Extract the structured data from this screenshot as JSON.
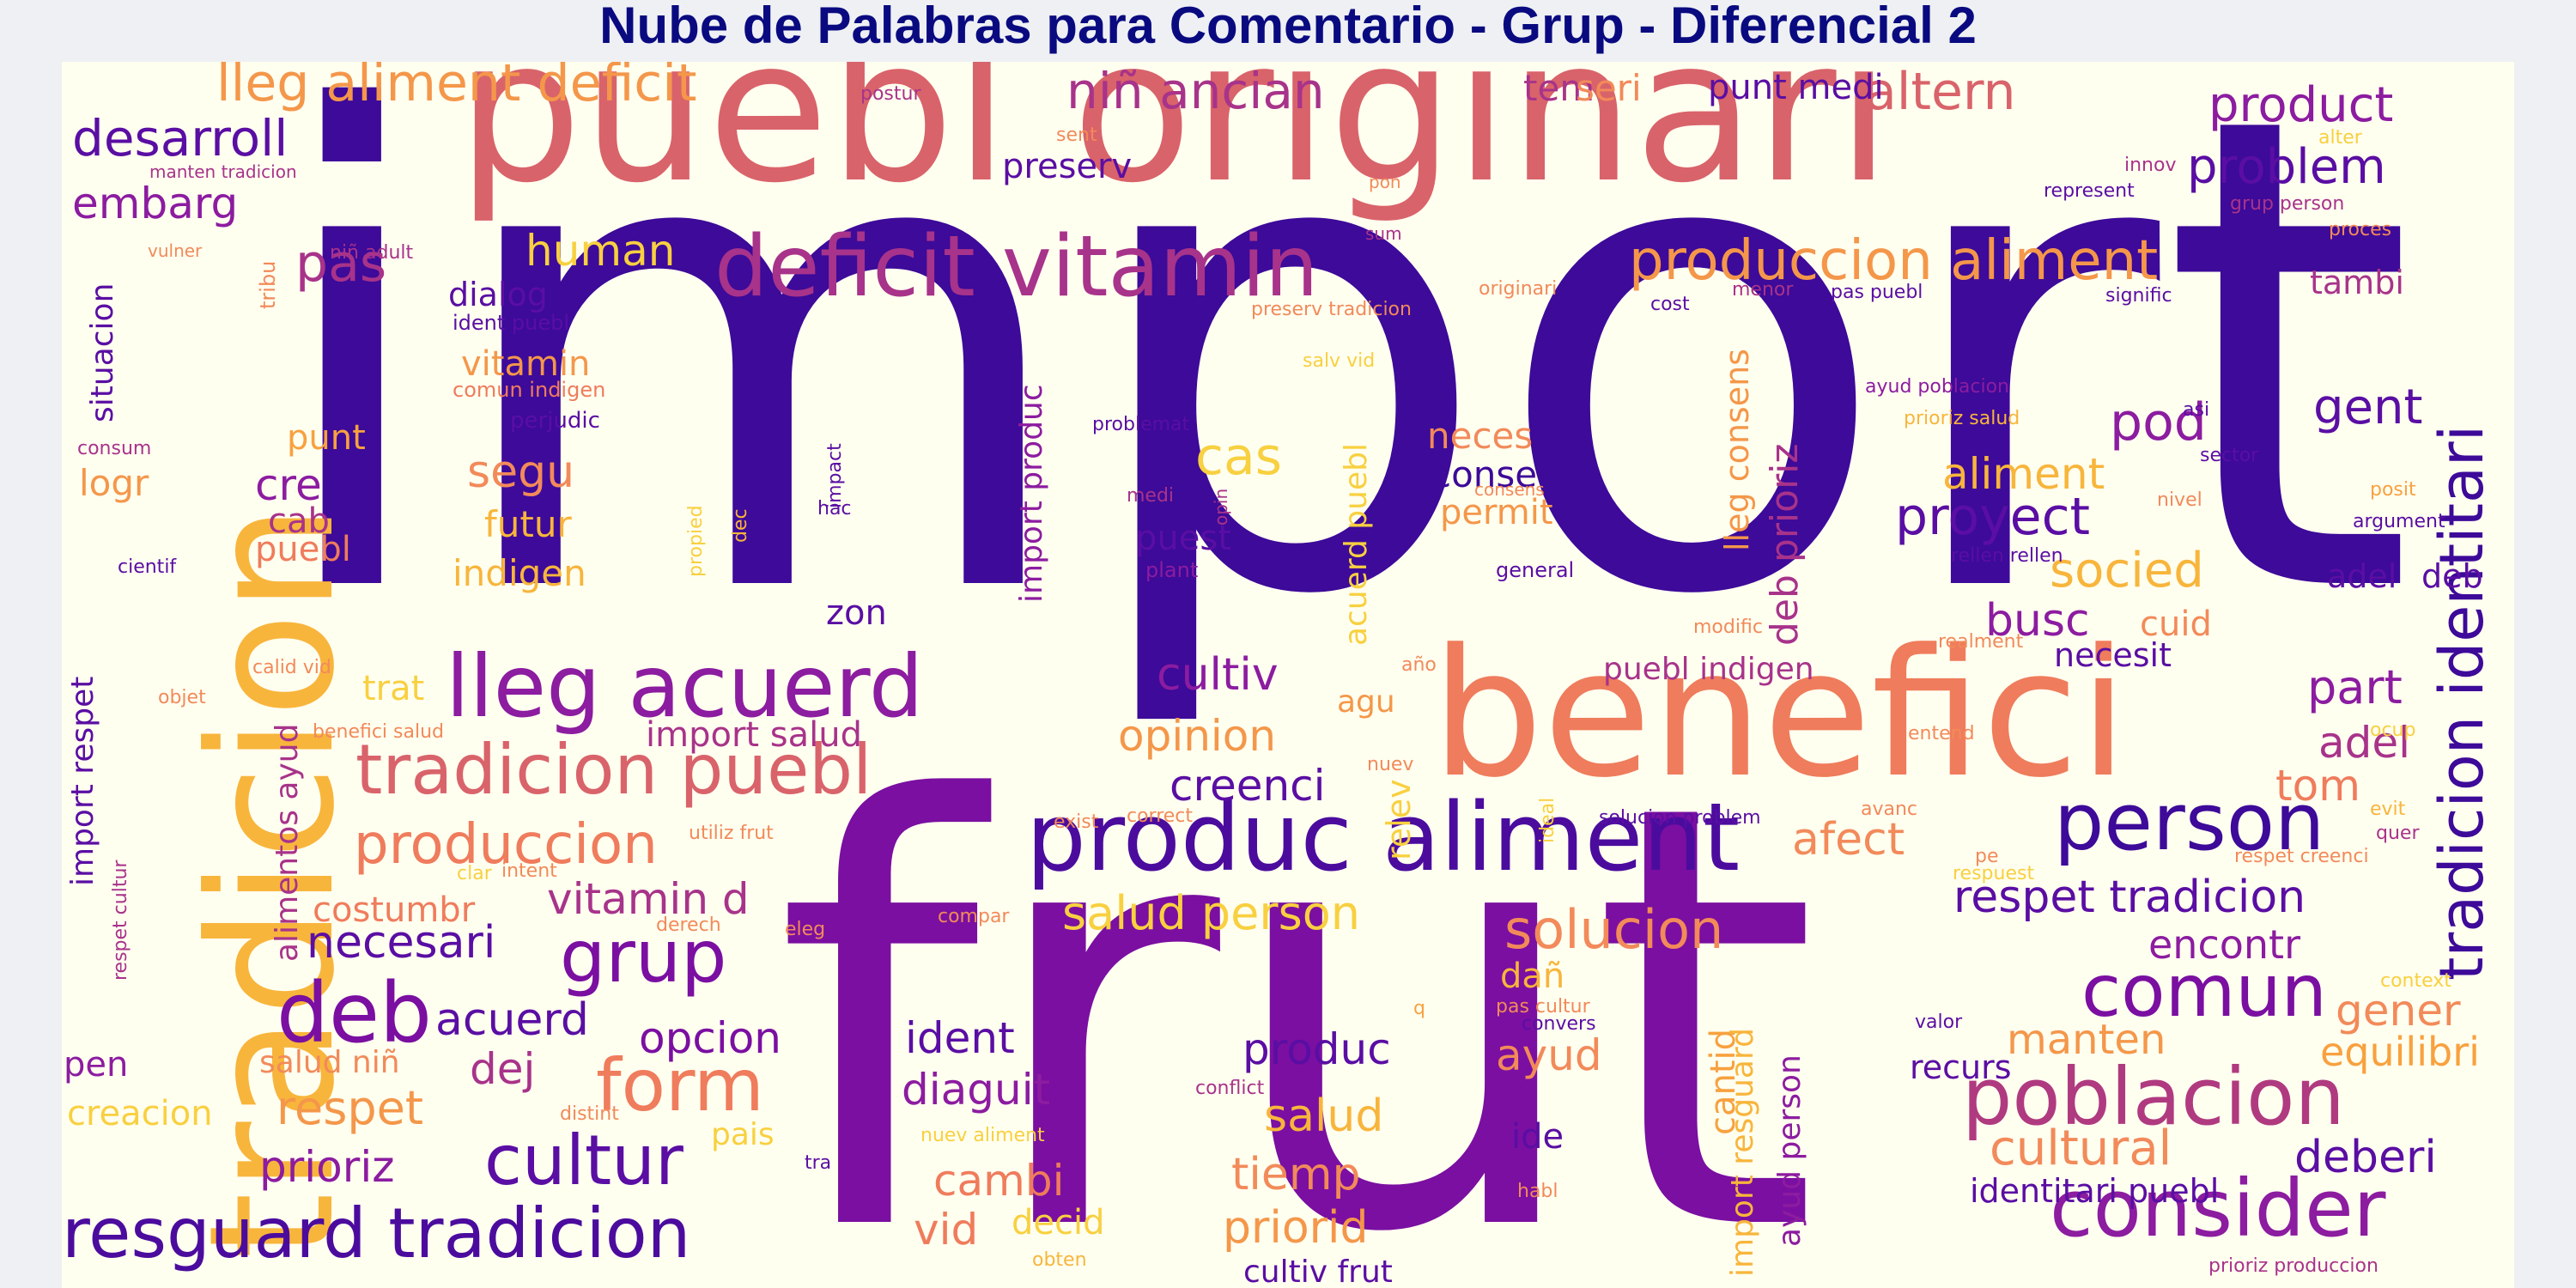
{
  "title": "Nube de Palabras para Comentario - Grup - Diferencial 2",
  "palette": {
    "dark_purple": "#3d0a99",
    "purple": "#7a0fa1",
    "magenta": "#a12a8f",
    "rose": "#d25e6b",
    "salmon": "#f28a5a",
    "orange": "#f8a13f",
    "yellow": "#f8d040"
  },
  "words": [
    {
      "text": "import",
      "color": "#3d0a99"
    },
    {
      "text": "frut",
      "color": "#7a0fa1"
    },
    {
      "text": "puebl originari",
      "color": "#d9636a"
    },
    {
      "text": "tradicion",
      "color": "#f8b53c"
    },
    {
      "text": "benefici",
      "color": "#ef7c5c"
    },
    {
      "text": "deficit vitamin",
      "color": "#a8338a"
    },
    {
      "text": "produc aliment",
      "color": "#4b0c9e"
    },
    {
      "text": "lleg acuerd",
      "color": "#8c1ca0"
    },
    {
      "text": "tradicion puebl",
      "color": "#d9636a"
    },
    {
      "text": "resguard tradicion",
      "color": "#4b0c9e"
    },
    {
      "text": "consider",
      "color": "#8c1ca0"
    },
    {
      "text": "poblacion",
      "color": "#b03a80"
    },
    {
      "text": "person",
      "color": "#3d0a99"
    },
    {
      "text": "tradicion identitari",
      "color": "#3d0a99"
    },
    {
      "text": "cultur",
      "color": "#5a0ea3"
    },
    {
      "text": "deb",
      "color": "#7a0fa1"
    },
    {
      "text": "grup",
      "color": "#7a0fa1"
    },
    {
      "text": "form",
      "color": "#ef7c5c"
    },
    {
      "text": "comun",
      "color": "#7a0fa1"
    },
    {
      "text": "lleg aliment deficit",
      "color": "#f4974a"
    },
    {
      "text": "niñ ancian",
      "color": "#a8338a"
    },
    {
      "text": "altern",
      "color": "#d9636a"
    },
    {
      "text": "product",
      "color": "#8c1ca0"
    },
    {
      "text": "problem",
      "color": "#5a0ea3"
    },
    {
      "text": "desarroll",
      "color": "#5a0ea3"
    },
    {
      "text": "embarg",
      "color": "#8c1ca0"
    },
    {
      "text": "pas",
      "color": "#a8338a"
    },
    {
      "text": "human",
      "color": "#f8d040"
    },
    {
      "text": "produccion aliment",
      "color": "#f4974a"
    },
    {
      "text": "tem",
      "color": "#a8338a"
    },
    {
      "text": "seri",
      "color": "#f28a5a"
    },
    {
      "text": "punt medi",
      "color": "#5a0ea3"
    },
    {
      "text": "preserv",
      "color": "#5a0ea3"
    },
    {
      "text": "tambi",
      "color": "#a8338a"
    },
    {
      "text": "dialog",
      "color": "#5a0ea3"
    },
    {
      "text": "situacion",
      "color": "#5a0ea3"
    },
    {
      "text": "tribu",
      "color": "#f28a5a"
    },
    {
      "text": "niñ adult",
      "color": "#a8338a"
    },
    {
      "text": "ident puebl",
      "color": "#5a0ea3"
    },
    {
      "text": "vitamin",
      "color": "#f4974a"
    },
    {
      "text": "comun indigen",
      "color": "#ef7c5c"
    },
    {
      "text": "punt",
      "color": "#f8a13f"
    },
    {
      "text": "perjudic",
      "color": "#5a0ea3"
    },
    {
      "text": "segu",
      "color": "#f28a5a"
    },
    {
      "text": "futur",
      "color": "#f8b53c"
    },
    {
      "text": "cre",
      "color": "#8c1ca0"
    },
    {
      "text": "cab",
      "color": "#a8338a"
    },
    {
      "text": "puebl",
      "color": "#ef7c5c"
    },
    {
      "text": "indigen",
      "color": "#f8b53c"
    },
    {
      "text": "logr",
      "color": "#f4974a"
    },
    {
      "text": "consum",
      "color": "#a8338a"
    },
    {
      "text": "cientif",
      "color": "#5a0ea3"
    },
    {
      "text": "cas",
      "color": "#f8d040"
    },
    {
      "text": "neces",
      "color": "#f28a5a"
    },
    {
      "text": "conserv",
      "color": "#3d0a99"
    },
    {
      "text": "permit",
      "color": "#f4974a"
    },
    {
      "text": "puest",
      "color": "#5a0ea3"
    },
    {
      "text": "plant",
      "color": "#8c1ca0"
    },
    {
      "text": "general",
      "color": "#5a0ea3"
    },
    {
      "text": "zon",
      "color": "#5a0ea3"
    },
    {
      "text": "import produc",
      "color": "#8c1ca0"
    },
    {
      "text": "acuerd puebl",
      "color": "#f8d040"
    },
    {
      "text": "lleg consens",
      "color": "#f4974a"
    },
    {
      "text": "deb prioriz",
      "color": "#a8338a"
    },
    {
      "text": "pod",
      "color": "#8c1ca0"
    },
    {
      "text": "aliment",
      "color": "#f8b53c"
    },
    {
      "text": "gent",
      "color": "#5a0ea3"
    },
    {
      "text": "proyect",
      "color": "#5a0ea3"
    },
    {
      "text": "socied",
      "color": "#f8b53c"
    },
    {
      "text": "busc",
      "color": "#8c1ca0"
    },
    {
      "text": "cuid",
      "color": "#f28a5a"
    },
    {
      "text": "adel",
      "color": "#5a0ea3"
    },
    {
      "text": "deb",
      "color": "#5a0ea3"
    },
    {
      "text": "necesit",
      "color": "#5a0ea3"
    },
    {
      "text": "part",
      "color": "#8c1ca0"
    },
    {
      "text": "adel",
      "color": "#a8338a"
    },
    {
      "text": "tom",
      "color": "#ef7c5c"
    },
    {
      "text": "puebl indigen",
      "color": "#a8338a"
    },
    {
      "text": "cultiv",
      "color": "#8c1ca0"
    },
    {
      "text": "opinion",
      "color": "#f4974a"
    },
    {
      "text": "creenci",
      "color": "#5a0ea3"
    },
    {
      "text": "agu",
      "color": "#f4974a"
    },
    {
      "text": "import salud",
      "color": "#a8338a"
    },
    {
      "text": "trat",
      "color": "#f8d040"
    },
    {
      "text": "alimentos ayud",
      "color": "#a8338a"
    },
    {
      "text": "import respet",
      "color": "#5a0ea3"
    },
    {
      "text": "produccion",
      "color": "#ef7c5c"
    },
    {
      "text": "vitamin d",
      "color": "#a8338a"
    },
    {
      "text": "costumbr",
      "color": "#ef7c5c"
    },
    {
      "text": "necesari",
      "color": "#5a0ea3"
    },
    {
      "text": "acuerd",
      "color": "#5a0ea3"
    },
    {
      "text": "salud person",
      "color": "#f8d040"
    },
    {
      "text": "relev",
      "color": "#f8d040"
    },
    {
      "text": "afect",
      "color": "#f28a5a"
    },
    {
      "text": "respet tradicion",
      "color": "#5a0ea3"
    },
    {
      "text": "encontr",
      "color": "#8c1ca0"
    },
    {
      "text": "solucion",
      "color": "#f28a5a"
    },
    {
      "text": "gener",
      "color": "#f28a5a"
    },
    {
      "text": "equilibri",
      "color": "#f8a13f"
    },
    {
      "text": "manten",
      "color": "#f4974a"
    },
    {
      "text": "cultural",
      "color": "#f28a5a"
    },
    {
      "text": "deberi",
      "color": "#5a0ea3"
    },
    {
      "text": "identitari puebl",
      "color": "#5a0ea3"
    },
    {
      "text": "opcion",
      "color": "#7a0fa1"
    },
    {
      "text": "ident",
      "color": "#5a0ea3"
    },
    {
      "text": "diaguit",
      "color": "#8c1ca0"
    },
    {
      "text": "cambi",
      "color": "#ef7c5c"
    },
    {
      "text": "vid",
      "color": "#ef7c5c"
    },
    {
      "text": "decid",
      "color": "#f8d040"
    },
    {
      "text": "produc",
      "color": "#5a0ea3"
    },
    {
      "text": "salud",
      "color": "#f8b53c"
    },
    {
      "text": "tiemp",
      "color": "#f28a5a"
    },
    {
      "text": "priorid",
      "color": "#f4974a"
    },
    {
      "text": "cultiv frut",
      "color": "#5a0ea3"
    },
    {
      "text": "ayud",
      "color": "#f28a5a"
    },
    {
      "text": "ide",
      "color": "#5a0ea3"
    },
    {
      "text": "cantid",
      "color": "#f8a13f"
    },
    {
      "text": "import resguard",
      "color": "#f8b53c"
    },
    {
      "text": "ayud person",
      "color": "#8c1ca0"
    },
    {
      "text": "recurs",
      "color": "#5a0ea3"
    },
    {
      "text": "pen",
      "color": "#8c1ca0"
    },
    {
      "text": "salud niñ",
      "color": "#f28a5a"
    },
    {
      "text": "dej",
      "color": "#a8338a"
    },
    {
      "text": "creacion",
      "color": "#f8d040"
    },
    {
      "text": "respet",
      "color": "#f4974a"
    },
    {
      "text": "prioriz",
      "color": "#8c1ca0"
    },
    {
      "text": "pais",
      "color": "#f8d040"
    },
    {
      "text": "postur",
      "color": "#a8338a"
    },
    {
      "text": "sent",
      "color": "#f28a5a"
    },
    {
      "text": "manten tradicion",
      "color": "#a8338a"
    },
    {
      "text": "vulner",
      "color": "#f28a5a"
    },
    {
      "text": "pon",
      "color": "#f28a5a"
    },
    {
      "text": "sum",
      "color": "#a8338a"
    },
    {
      "text": "preserv tradicion",
      "color": "#f28a5a"
    },
    {
      "text": "salv vid",
      "color": "#f8d040"
    },
    {
      "text": "originari",
      "color": "#f28a5a"
    },
    {
      "text": "cost",
      "color": "#5a0ea3"
    },
    {
      "text": "menor",
      "color": "#a8338a"
    },
    {
      "text": "pas puebl",
      "color": "#5a0ea3"
    },
    {
      "text": "signific",
      "color": "#5a0ea3"
    },
    {
      "text": "innov",
      "color": "#a8338a"
    },
    {
      "text": "represent",
      "color": "#5a0ea3"
    },
    {
      "text": "grup person",
      "color": "#a8338a"
    },
    {
      "text": "proces",
      "color": "#f28a5a"
    },
    {
      "text": "alter",
      "color": "#f8d040"
    },
    {
      "text": "ayud poblacion",
      "color": "#8c1ca0"
    },
    {
      "text": "prioriz salud",
      "color": "#f8b53c"
    },
    {
      "text": "asi",
      "color": "#5a0ea3"
    },
    {
      "text": "sector",
      "color": "#5a0ea3"
    },
    {
      "text": "nivel",
      "color": "#f28a5a"
    },
    {
      "text": "posit",
      "color": "#f8a13f"
    },
    {
      "text": "argument",
      "color": "#5a0ea3"
    },
    {
      "text": "rellen rellen",
      "color": "#5a0ea3"
    },
    {
      "text": "problemat",
      "color": "#5a0ea3"
    },
    {
      "text": "medi",
      "color": "#a8338a"
    },
    {
      "text": "consens",
      "color": "#f28a5a"
    },
    {
      "text": "opin",
      "color": "#a8338a"
    },
    {
      "text": "impact",
      "color": "#5a0ea3"
    },
    {
      "text": "hac",
      "color": "#5a0ea3"
    },
    {
      "text": "propied",
      "color": "#f8d040"
    },
    {
      "text": "dec",
      "color": "#f8b53c"
    },
    {
      "text": "modific",
      "color": "#f28a5a"
    },
    {
      "text": "realment",
      "color": "#f28a5a"
    },
    {
      "text": "año",
      "color": "#f28a5a"
    },
    {
      "text": "calid vid",
      "color": "#f28a5a"
    },
    {
      "text": "objet",
      "color": "#f28a5a"
    },
    {
      "text": "benefici salud",
      "color": "#f28a5a"
    },
    {
      "text": "nuev",
      "color": "#f28a5a"
    },
    {
      "text": "exist",
      "color": "#f28a5a"
    },
    {
      "text": "correct",
      "color": "#f28a5a"
    },
    {
      "text": "ideal",
      "color": "#f8d040"
    },
    {
      "text": "solucion problem",
      "color": "#5a0ea3"
    },
    {
      "text": "avanc",
      "color": "#f28a5a"
    },
    {
      "text": "entend",
      "color": "#f28a5a"
    },
    {
      "text": "ocup",
      "color": "#f8d040"
    },
    {
      "text": "evit",
      "color": "#f8b53c"
    },
    {
      "text": "quer",
      "color": "#a8338a"
    },
    {
      "text": "pe",
      "color": "#f28a5a"
    },
    {
      "text": "respet creenci",
      "color": "#f28a5a"
    },
    {
      "text": "respuest",
      "color": "#f8d040"
    },
    {
      "text": "utiliz frut",
      "color": "#f28a5a"
    },
    {
      "text": "intent",
      "color": "#f28a5a"
    },
    {
      "text": "clar",
      "color": "#f8d040"
    },
    {
      "text": "derech",
      "color": "#f28a5a"
    },
    {
      "text": "eleg",
      "color": "#f28a5a"
    },
    {
      "text": "compar",
      "color": "#f28a5a"
    },
    {
      "text": "respet cultur",
      "color": "#a8338a"
    },
    {
      "text": "context",
      "color": "#f8d040"
    },
    {
      "text": "valor",
      "color": "#5a0ea3"
    },
    {
      "text": "q",
      "color": "#f8a13f"
    },
    {
      "text": "dañ",
      "color": "#f8b53c"
    },
    {
      "text": "pas cultur",
      "color": "#f28a5a"
    },
    {
      "text": "convers",
      "color": "#5a0ea3"
    },
    {
      "text": "conflict",
      "color": "#a8338a"
    },
    {
      "text": "distint",
      "color": "#f28a5a"
    },
    {
      "text": "nuev aliment",
      "color": "#f8d040"
    },
    {
      "text": "tra",
      "color": "#5a0ea3"
    },
    {
      "text": "habl",
      "color": "#f28a5a"
    },
    {
      "text": "obten",
      "color": "#f8b53c"
    },
    {
      "text": "prioriz produccion",
      "color": "#a8338a"
    }
  ]
}
